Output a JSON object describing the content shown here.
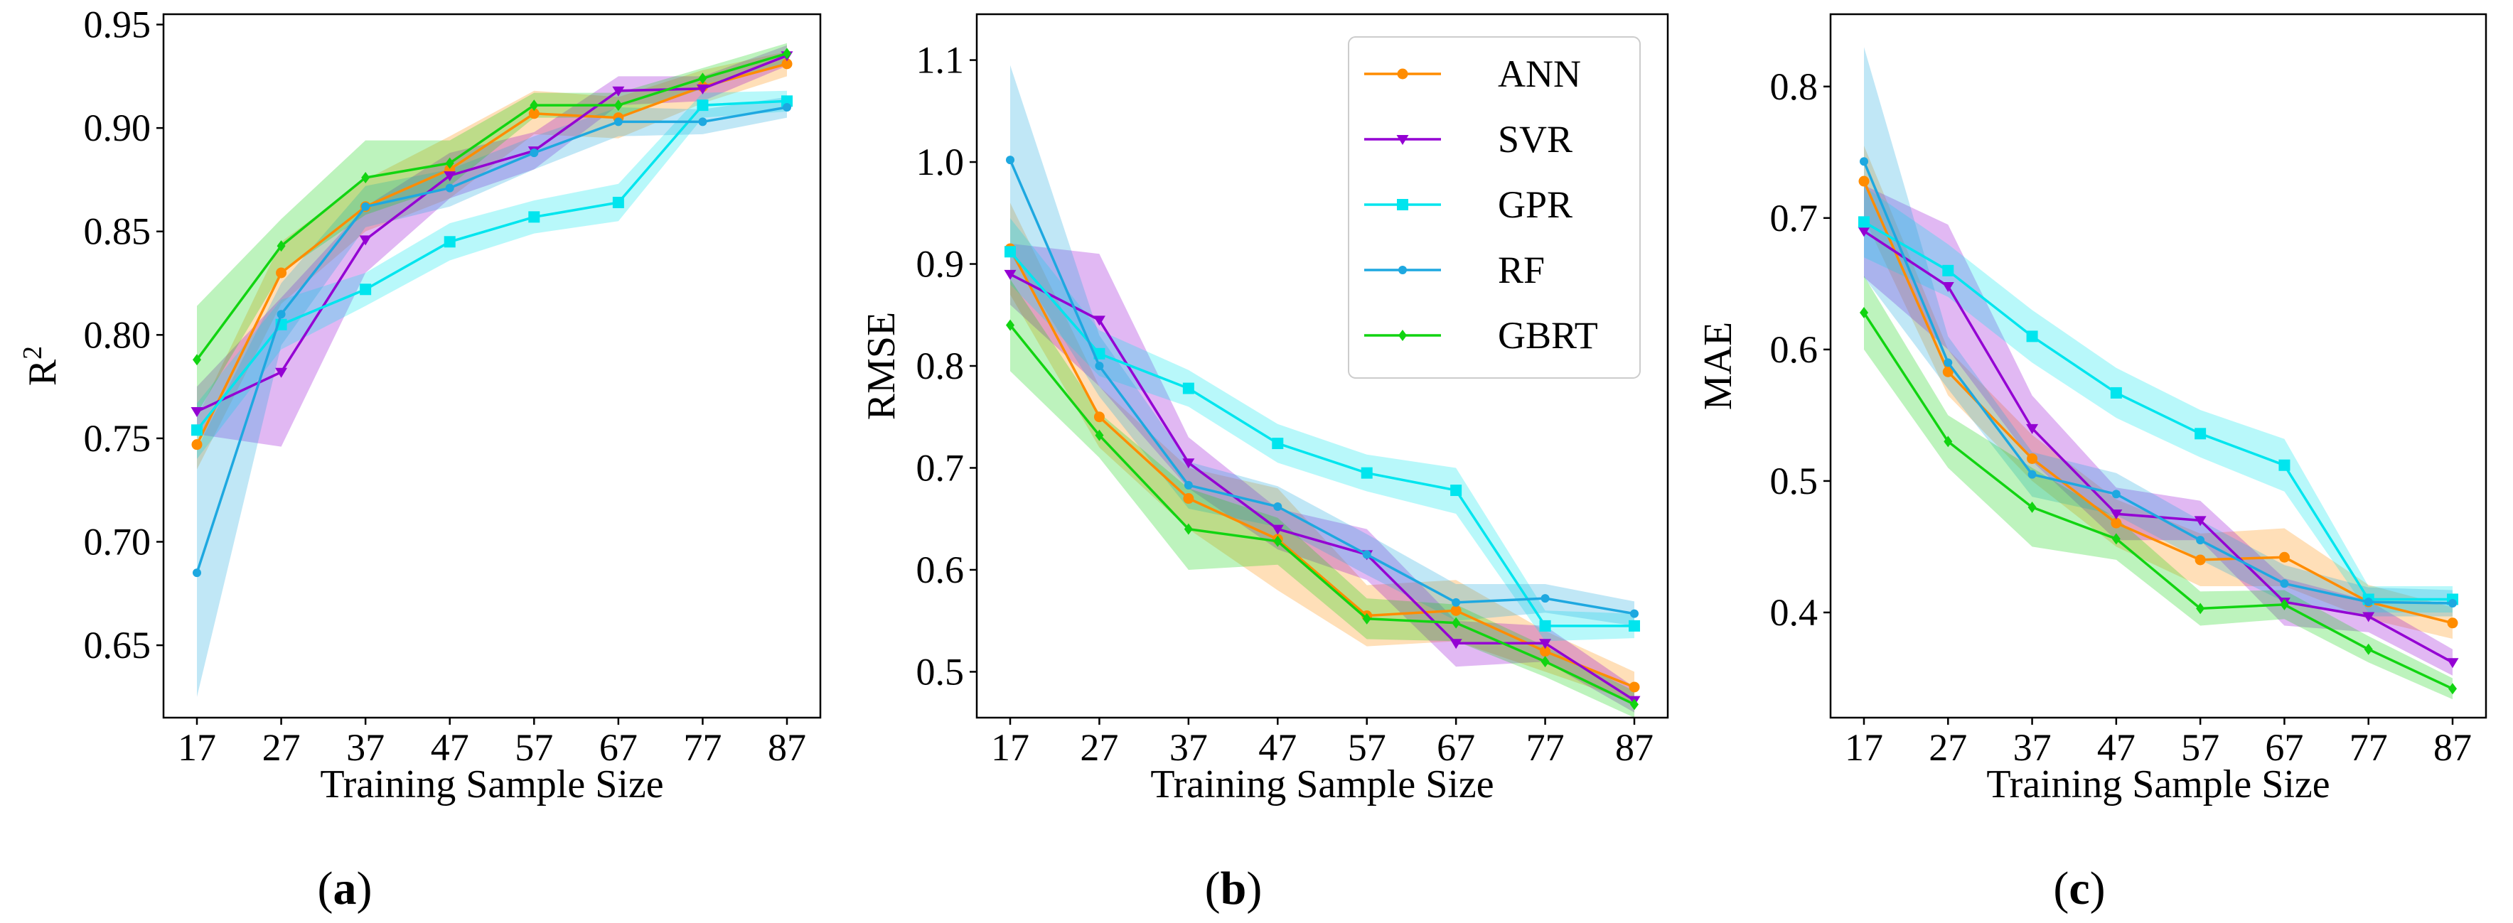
{
  "chart_data": [
    {
      "type": "line",
      "panel": "a",
      "caption_letter": "a",
      "xlabel": "Training Sample Size",
      "ylabel": "R",
      "ylabel_sup": "2",
      "x": [
        17,
        27,
        37,
        47,
        57,
        67,
        77,
        87
      ],
      "xticks": [
        "17",
        "27",
        "37",
        "47",
        "57",
        "67",
        "77",
        "87"
      ],
      "ylim": [
        0.615,
        0.955
      ],
      "yticks": [
        0.65,
        0.7,
        0.75,
        0.8,
        0.85,
        0.9,
        0.95
      ],
      "ytick_labels": [
        "0.65",
        "0.70",
        "0.75",
        "0.80",
        "0.85",
        "0.90",
        "0.95"
      ],
      "series": [
        {
          "name": "ANN",
          "color": "#ff8c00",
          "marker": "circle",
          "values": [
            0.747,
            0.83,
            0.862,
            0.88,
            0.907,
            0.905,
            0.92,
            0.931
          ],
          "lower": [
            0.735,
            0.815,
            0.85,
            0.866,
            0.897,
            0.895,
            0.912,
            0.925
          ],
          "upper": [
            0.76,
            0.845,
            0.875,
            0.896,
            0.918,
            0.915,
            0.928,
            0.937
          ]
        },
        {
          "name": "SVR",
          "color": "#9400d3",
          "marker": "triangle-down",
          "values": [
            0.763,
            0.782,
            0.846,
            0.877,
            0.889,
            0.918,
            0.919,
            0.935
          ],
          "lower": [
            0.752,
            0.746,
            0.83,
            0.866,
            0.88,
            0.911,
            0.913,
            0.93
          ],
          "upper": [
            0.775,
            0.818,
            0.862,
            0.888,
            0.898,
            0.925,
            0.925,
            0.94
          ]
        },
        {
          "name": "GPR",
          "color": "#00e5ee",
          "marker": "square",
          "values": [
            0.754,
            0.805,
            0.822,
            0.845,
            0.857,
            0.864,
            0.911,
            0.913
          ],
          "lower": [
            0.74,
            0.793,
            0.814,
            0.836,
            0.849,
            0.855,
            0.905,
            0.908
          ],
          "upper": [
            0.767,
            0.817,
            0.83,
            0.854,
            0.865,
            0.873,
            0.917,
            0.918
          ]
        },
        {
          "name": "RF",
          "color": "#1ea8e0",
          "marker": "circle-small",
          "values": [
            0.685,
            0.81,
            0.862,
            0.871,
            0.888,
            0.903,
            0.903,
            0.91
          ],
          "lower": [
            0.625,
            0.795,
            0.852,
            0.862,
            0.88,
            0.896,
            0.897,
            0.905
          ],
          "upper": [
            0.745,
            0.825,
            0.872,
            0.88,
            0.896,
            0.91,
            0.909,
            0.915
          ]
        },
        {
          "name": "GBRT",
          "color": "#11d411",
          "marker": "diamond",
          "values": [
            0.788,
            0.843,
            0.876,
            0.883,
            0.911,
            0.911,
            0.924,
            0.936
          ],
          "lower": [
            0.762,
            0.83,
            0.858,
            0.872,
            0.905,
            0.905,
            0.919,
            0.931
          ],
          "upper": [
            0.814,
            0.856,
            0.894,
            0.894,
            0.917,
            0.917,
            0.929,
            0.941
          ]
        }
      ]
    },
    {
      "type": "line",
      "panel": "b",
      "caption_letter": "b",
      "xlabel": "Training Sample Size",
      "ylabel": "RMSE",
      "x": [
        17,
        27,
        37,
        47,
        57,
        67,
        77,
        87
      ],
      "xticks": [
        "17",
        "27",
        "37",
        "47",
        "57",
        "67",
        "77",
        "87"
      ],
      "ylim": [
        0.455,
        1.145
      ],
      "yticks": [
        0.5,
        0.6,
        0.7,
        0.8,
        0.9,
        1.0,
        1.1
      ],
      "ytick_labels": [
        "0.5",
        "0.6",
        "0.7",
        "0.8",
        "0.9",
        "1.0",
        "1.1"
      ],
      "legend": {
        "position": "top-right",
        "entries": [
          "ANN",
          "SVR",
          "GPR",
          "RF",
          "GBRT"
        ]
      },
      "series": [
        {
          "name": "ANN",
          "color": "#ff8c00",
          "marker": "circle",
          "values": [
            0.915,
            0.75,
            0.67,
            0.63,
            0.555,
            0.56,
            0.52,
            0.485
          ],
          "lower": [
            0.87,
            0.72,
            0.64,
            0.58,
            0.525,
            0.53,
            0.5,
            0.47
          ],
          "upper": [
            0.96,
            0.78,
            0.7,
            0.68,
            0.585,
            0.59,
            0.54,
            0.5
          ]
        },
        {
          "name": "SVR",
          "color": "#9400d3",
          "marker": "triangle-down",
          "values": [
            0.89,
            0.845,
            0.705,
            0.64,
            0.615,
            0.528,
            0.528,
            0.472
          ],
          "lower": [
            0.86,
            0.78,
            0.68,
            0.62,
            0.59,
            0.505,
            0.51,
            0.46
          ],
          "upper": [
            0.92,
            0.91,
            0.73,
            0.66,
            0.64,
            0.55,
            0.545,
            0.485
          ]
        },
        {
          "name": "GPR",
          "color": "#00e5ee",
          "marker": "square",
          "values": [
            0.912,
            0.812,
            0.778,
            0.724,
            0.695,
            0.678,
            0.545,
            0.545
          ],
          "lower": [
            0.88,
            0.79,
            0.76,
            0.705,
            0.677,
            0.655,
            0.53,
            0.533
          ],
          "upper": [
            0.945,
            0.835,
            0.796,
            0.743,
            0.713,
            0.7,
            0.56,
            0.557
          ]
        },
        {
          "name": "RF",
          "color": "#1ea8e0",
          "marker": "circle-small",
          "values": [
            1.002,
            0.8,
            0.683,
            0.662,
            0.615,
            0.568,
            0.572,
            0.557
          ],
          "lower": [
            0.91,
            0.77,
            0.66,
            0.642,
            0.595,
            0.55,
            0.558,
            0.545
          ],
          "upper": [
            1.095,
            0.83,
            0.706,
            0.682,
            0.635,
            0.586,
            0.586,
            0.569
          ]
        },
        {
          "name": "GBRT",
          "color": "#11d411",
          "marker": "diamond",
          "values": [
            0.84,
            0.732,
            0.64,
            0.628,
            0.552,
            0.548,
            0.51,
            0.468
          ],
          "lower": [
            0.795,
            0.71,
            0.6,
            0.605,
            0.532,
            0.53,
            0.495,
            0.455
          ],
          "upper": [
            0.885,
            0.754,
            0.68,
            0.651,
            0.572,
            0.566,
            0.525,
            0.481
          ]
        }
      ]
    },
    {
      "type": "line",
      "panel": "c",
      "caption_letter": "c",
      "xlabel": "Training Sample Size",
      "ylabel": "MAE",
      "x": [
        17,
        27,
        37,
        47,
        57,
        67,
        77,
        87
      ],
      "xticks": [
        "17",
        "27",
        "37",
        "47",
        "57",
        "67",
        "77",
        "87"
      ],
      "ylim": [
        0.32,
        0.855
      ],
      "yticks": [
        0.4,
        0.5,
        0.6,
        0.7,
        0.8
      ],
      "ytick_labels": [
        "0.4",
        "0.5",
        "0.6",
        "0.7",
        "0.8"
      ],
      "series": [
        {
          "name": "ANN",
          "color": "#ff8c00",
          "marker": "circle",
          "values": [
            0.728,
            0.583,
            0.517,
            0.468,
            0.44,
            0.442,
            0.408,
            0.392
          ],
          "lower": [
            0.7,
            0.565,
            0.5,
            0.45,
            0.42,
            0.42,
            0.395,
            0.38
          ],
          "upper": [
            0.755,
            0.6,
            0.535,
            0.486,
            0.46,
            0.464,
            0.421,
            0.404
          ]
        },
        {
          "name": "SVR",
          "color": "#9400d3",
          "marker": "triangle-down",
          "values": [
            0.69,
            0.648,
            0.54,
            0.475,
            0.47,
            0.408,
            0.397,
            0.362
          ],
          "lower": [
            0.655,
            0.6,
            0.515,
            0.455,
            0.455,
            0.39,
            0.385,
            0.352
          ],
          "upper": [
            0.725,
            0.695,
            0.565,
            0.495,
            0.485,
            0.426,
            0.409,
            0.372
          ]
        },
        {
          "name": "GPR",
          "color": "#00e5ee",
          "marker": "square",
          "values": [
            0.697,
            0.66,
            0.61,
            0.567,
            0.536,
            0.512,
            0.41,
            0.41
          ],
          "lower": [
            0.67,
            0.64,
            0.59,
            0.548,
            0.518,
            0.492,
            0.4,
            0.4
          ],
          "upper": [
            0.724,
            0.68,
            0.63,
            0.586,
            0.554,
            0.532,
            0.42,
            0.42
          ]
        },
        {
          "name": "RF",
          "color": "#1ea8e0",
          "marker": "circle-small",
          "values": [
            0.743,
            0.59,
            0.505,
            0.49,
            0.455,
            0.422,
            0.408,
            0.407
          ],
          "lower": [
            0.655,
            0.57,
            0.488,
            0.474,
            0.44,
            0.408,
            0.397,
            0.397
          ],
          "upper": [
            0.83,
            0.61,
            0.522,
            0.506,
            0.47,
            0.436,
            0.419,
            0.417
          ]
        },
        {
          "name": "GBRT",
          "color": "#11d411",
          "marker": "diamond",
          "values": [
            0.628,
            0.53,
            0.48,
            0.456,
            0.403,
            0.406,
            0.372,
            0.342
          ],
          "lower": [
            0.6,
            0.51,
            0.45,
            0.44,
            0.39,
            0.395,
            0.362,
            0.334
          ],
          "upper": [
            0.656,
            0.55,
            0.51,
            0.472,
            0.416,
            0.417,
            0.382,
            0.35
          ]
        }
      ]
    }
  ]
}
